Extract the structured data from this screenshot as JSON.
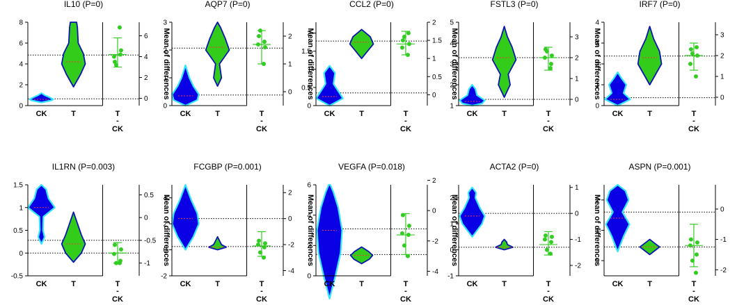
{
  "figure": {
    "x_categories": [
      "CK",
      "T",
      "T",
      "-",
      "CK"
    ],
    "right_axis_label": "Mean of differences",
    "colors": {
      "ck_fill": "#0a00e6",
      "ck_edge": "#33e6ff",
      "t_fill": "#33cc1a",
      "t_edge": "#0a14b4",
      "dot": "#33cc22",
      "errbar": "#33cc22",
      "median": "#ff3333"
    }
  },
  "chart_data": [
    {
      "type": "violin",
      "gene": "IL10",
      "title": "IL10 (P=0)",
      "left": {
        "ylim": [
          0,
          8
        ],
        "ticks": [
          0,
          2,
          4,
          6,
          8
        ]
      },
      "right": {
        "ylim": [
          -0.7,
          7.3
        ],
        "ticks": [
          0,
          2,
          4,
          6
        ]
      },
      "ck": {
        "min": 0.3,
        "max": 1.2,
        "median": 0.6,
        "shape": [
          [
            0.3,
            0
          ],
          [
            0.5,
            0.25
          ],
          [
            0.6,
            0.3
          ],
          [
            0.8,
            0.2
          ],
          [
            1.0,
            0.08
          ],
          [
            1.2,
            0
          ]
        ]
      },
      "t": {
        "min": 1.8,
        "max": 8,
        "median": 4.2,
        "shape": [
          [
            1.8,
            0
          ],
          [
            3.0,
            0.18
          ],
          [
            4.0,
            0.3
          ],
          [
            5.0,
            0.25
          ],
          [
            6.0,
            0.12
          ],
          [
            7.5,
            0.1
          ],
          [
            8,
            0.08
          ]
        ]
      },
      "ref_left": [
        0.65,
        4.85
      ],
      "diff": {
        "points": [
          3.5,
          4.6,
          4.0,
          4.2,
          3.2,
          6.8
        ],
        "mean": 4.2,
        "lo": 3.0,
        "hi": 5.8
      }
    },
    {
      "type": "violin",
      "gene": "AQP7",
      "title": "AQP7 (P=0)",
      "left": {
        "ylim": [
          0,
          3
        ],
        "ticks": [
          0,
          1,
          2,
          3
        ]
      },
      "right": {
        "ylim": [
          -0.5,
          2.5
        ],
        "ticks": [
          0,
          1,
          2
        ]
      },
      "ck": {
        "min": 0,
        "max": 1.45,
        "median": 0.35,
        "shape": [
          [
            0,
            0
          ],
          [
            0.2,
            0.3
          ],
          [
            0.4,
            0.34
          ],
          [
            0.7,
            0.2
          ],
          [
            1.0,
            0.1
          ],
          [
            1.45,
            0
          ]
        ]
      },
      "t": {
        "min": 0.7,
        "max": 3,
        "median": 2.1,
        "shape": [
          [
            0.7,
            0
          ],
          [
            1.0,
            0.1
          ],
          [
            1.5,
            0.05
          ],
          [
            2.0,
            0.3
          ],
          [
            2.4,
            0.2
          ],
          [
            2.8,
            0.08
          ],
          [
            3,
            0
          ]
        ]
      },
      "ref_left": [
        0.38,
        2.07
      ],
      "diff": {
        "points": [
          2.0,
          1.6,
          1.7,
          1.8,
          2.2,
          1.0
        ],
        "mean": 1.7,
        "lo": 1.0,
        "hi": 2.2
      }
    },
    {
      "type": "violin",
      "gene": "CCL2",
      "title": "CCL2 (P=0)",
      "left": {
        "ylim": [
          0,
          2.3
        ],
        "ticks": [
          0,
          0.5,
          1.0,
          1.5,
          2.0
        ]
      },
      "right": {
        "ylim": [
          -0.3,
          2.0
        ],
        "ticks": [
          0,
          0.5,
          1.0,
          1.5,
          2.0
        ]
      },
      "ck": {
        "min": 0,
        "max": 1.1,
        "median": 0.25,
        "shape": [
          [
            0,
            0
          ],
          [
            0.2,
            0.34
          ],
          [
            0.35,
            0.25
          ],
          [
            0.6,
            0.1
          ],
          [
            0.9,
            0.14
          ],
          [
            1.1,
            0
          ]
        ]
      },
      "t": {
        "min": 1.3,
        "max": 2.1,
        "median": 1.75,
        "shape": [
          [
            1.3,
            0
          ],
          [
            1.5,
            0.15
          ],
          [
            1.7,
            0.3
          ],
          [
            1.9,
            0.22
          ],
          [
            2.1,
            0
          ]
        ]
      },
      "ref_left": [
        0.35,
        1.78
      ],
      "diff": {
        "points": [
          1.5,
          1.4,
          1.3,
          1.7,
          1.6,
          1.1
        ],
        "mean": 1.4,
        "lo": 1.1,
        "hi": 1.75
      }
    },
    {
      "type": "violin",
      "gene": "FSTL3",
      "title": "FSTL3 (P=0)",
      "left": {
        "ylim": [
          1,
          5
        ],
        "ticks": [
          1,
          2,
          3,
          4,
          5
        ]
      },
      "right": {
        "ylim": [
          -0.3,
          3.7
        ],
        "ticks": [
          0,
          1,
          2,
          3
        ]
      },
      "ck": {
        "min": 1,
        "max": 2,
        "median": 1.2,
        "shape": [
          [
            1,
            0
          ],
          [
            1.1,
            0.25
          ],
          [
            1.25,
            0.32
          ],
          [
            1.5,
            0.12
          ],
          [
            1.8,
            0.08
          ],
          [
            2,
            0
          ]
        ]
      },
      "t": {
        "min": 1.4,
        "max": 4.8,
        "median": 3.3,
        "shape": [
          [
            1.4,
            0
          ],
          [
            2.0,
            0.15
          ],
          [
            2.5,
            0.1
          ],
          [
            3.2,
            0.3
          ],
          [
            3.8,
            0.2
          ],
          [
            4.3,
            0.08
          ],
          [
            4.8,
            0
          ]
        ]
      },
      "ref_left": [
        1.3,
        3.3
      ],
      "diff": {
        "points": [
          2.4,
          2.1,
          2.0,
          1.7,
          2.3,
          1.5
        ],
        "mean": 2.0,
        "lo": 1.4,
        "hi": 2.5
      }
    },
    {
      "type": "violin",
      "gene": "IRF7",
      "title": "IRF7 (P=0)",
      "left": {
        "ylim": [
          0,
          4
        ],
        "ticks": [
          0,
          1,
          2,
          3,
          4
        ]
      },
      "right": {
        "ylim": [
          -0.4,
          3.6
        ],
        "ticks": [
          0,
          1,
          2,
          3
        ]
      },
      "ck": {
        "min": 0,
        "max": 1.6,
        "median": 0.3,
        "shape": [
          [
            0,
            0
          ],
          [
            0.3,
            0.32
          ],
          [
            0.6,
            0.15
          ],
          [
            1.0,
            0.22
          ],
          [
            1.3,
            0.1
          ],
          [
            1.6,
            0
          ]
        ]
      },
      "t": {
        "min": 1.0,
        "max": 3.8,
        "median": 2.3,
        "shape": [
          [
            1.0,
            0
          ],
          [
            1.5,
            0.15
          ],
          [
            2.0,
            0.3
          ],
          [
            2.6,
            0.25
          ],
          [
            3.2,
            0.1
          ],
          [
            3.8,
            0
          ]
        ]
      },
      "ref_left": [
        0.38,
        2.38
      ],
      "diff": {
        "points": [
          2.3,
          2.0,
          1.6,
          2.4,
          2.1,
          1.0
        ],
        "mean": 2.0,
        "lo": 1.3,
        "hi": 2.6
      }
    },
    {
      "type": "violin",
      "gene": "IL1RN",
      "title": "IL1RN (P=0.003)",
      "left": {
        "ylim": [
          -0.5,
          1.5
        ],
        "ticks": [
          -0.5,
          0.0,
          0.5,
          1.0,
          1.5
        ]
      },
      "right": {
        "ylim": [
          -1.28,
          0.72
        ],
        "ticks": [
          -1.0,
          -0.5,
          0.0,
          0.5
        ]
      },
      "ck": {
        "min": 0.2,
        "max": 1.5,
        "median": 1.0,
        "shape": [
          [
            0.2,
            0
          ],
          [
            0.35,
            0.08
          ],
          [
            0.5,
            0.04
          ],
          [
            0.8,
            0.05
          ],
          [
            1.0,
            0.34
          ],
          [
            1.2,
            0.18
          ],
          [
            1.4,
            0.12
          ],
          [
            1.5,
            0
          ]
        ]
      },
      "t": {
        "min": -0.2,
        "max": 0.9,
        "median": 0.2,
        "shape": [
          [
            -0.2,
            0
          ],
          [
            0.0,
            0.2
          ],
          [
            0.2,
            0.3
          ],
          [
            0.4,
            0.2
          ],
          [
            0.6,
            0.12
          ],
          [
            0.9,
            0
          ]
        ]
      },
      "ref_left": [
        0.0,
        0.28
      ],
      "diff": {
        "points": [
          -0.6,
          -0.7,
          -0.8,
          -0.95,
          -1.0,
          -1.0
        ],
        "mean": -0.78,
        "lo": -1.0,
        "hi": -0.55
      }
    },
    {
      "type": "violin",
      "gene": "FCGBP",
      "title": "FCGBP (P=0.001)",
      "left": {
        "ylim": [
          -2,
          5
        ],
        "ticks": [
          -2,
          0,
          2,
          4
        ]
      },
      "right": {
        "ylim": [
          -4.4,
          2.6
        ],
        "ticks": [
          -4,
          -2,
          0,
          2
        ]
      },
      "ck": {
        "min": 0,
        "max": 5,
        "median": 2.4,
        "shape": [
          [
            0,
            0
          ],
          [
            1.0,
            0.2
          ],
          [
            2.0,
            0.34
          ],
          [
            2.8,
            0.3
          ],
          [
            3.8,
            0.15
          ],
          [
            5,
            0
          ]
        ]
      },
      "t": {
        "min": 0,
        "max": 1.0,
        "median": 0.2,
        "shape": [
          [
            0,
            0
          ],
          [
            0.2,
            0.22
          ],
          [
            0.4,
            0.1
          ],
          [
            0.7,
            0.05
          ],
          [
            1.0,
            0
          ]
        ]
      },
      "ref_left": [
        0.25,
        2.4
      ],
      "diff": {
        "points": [
          -1.7,
          -1.9,
          -2.0,
          -2.2,
          -2.6,
          -3.0
        ],
        "mean": -2.1,
        "lo": -2.9,
        "hi": -1.0
      }
    },
    {
      "type": "violin",
      "gene": "VEGFA",
      "title": "VEGFA (P=0.018)",
      "left": {
        "ylim": [
          0,
          6
        ],
        "ticks": [
          0,
          2,
          4,
          6
        ]
      },
      "right": {
        "ylim": [
          -4.3,
          1.7
        ],
        "ticks": [
          -4,
          -2,
          0,
          2
        ]
      },
      "ck": {
        "min": -1.5,
        "max": 6,
        "median": 3.0,
        "shape": [
          [
            -1.5,
            0
          ],
          [
            0,
            0.15
          ],
          [
            1.5,
            0.28
          ],
          [
            3.0,
            0.32
          ],
          [
            4.5,
            0.22
          ],
          [
            5.5,
            0.1
          ],
          [
            6,
            0.02
          ]
        ]
      },
      "t": {
        "min": 0.8,
        "max": 1.9,
        "median": 1.35,
        "shape": [
          [
            0.8,
            0
          ],
          [
            1.1,
            0.2
          ],
          [
            1.35,
            0.28
          ],
          [
            1.6,
            0.18
          ],
          [
            1.9,
            0
          ]
        ]
      },
      "ref_left": [
        1.4,
        3.1
      ],
      "diff": {
        "points": [
          -0.3,
          -1.0,
          -1.5,
          -1.6,
          -2.3,
          -3.0
        ],
        "mean": -1.6,
        "lo": -2.9,
        "hi": -0.2
      }
    },
    {
      "type": "violin",
      "gene": "ACTA2",
      "title": "ACTA2 (P=0)",
      "left": {
        "ylim": [
          -1,
          2.5
        ],
        "ticks": [
          -1,
          0,
          1,
          2
        ]
      },
      "right": {
        "ylim": [
          -2.4,
          1.1
        ],
        "ticks": [
          -2,
          -1,
          0,
          1
        ]
      },
      "ck": {
        "min": 0.5,
        "max": 2.4,
        "median": 1.3,
        "shape": [
          [
            0.5,
            0
          ],
          [
            1.0,
            0.25
          ],
          [
            1.3,
            0.32
          ],
          [
            1.6,
            0.2
          ],
          [
            2.0,
            0.08
          ],
          [
            2.2,
            0.1
          ],
          [
            2.4,
            0
          ]
        ]
      },
      "t": {
        "min": 0,
        "max": 0.4,
        "median": 0.1,
        "shape": [
          [
            0,
            0
          ],
          [
            0.1,
            0.22
          ],
          [
            0.2,
            0.08
          ],
          [
            0.3,
            0.06
          ],
          [
            0.4,
            0
          ]
        ]
      },
      "ref_left": [
        0.1,
        1.4
      ],
      "diff": {
        "points": [
          -0.85,
          -0.9,
          -1.0,
          -1.1,
          -1.4,
          -1.55
        ],
        "mean": -1.2,
        "lo": -1.6,
        "hi": -0.7
      }
    },
    {
      "type": "violin",
      "gene": "ASPN",
      "title": "ASPN (P=0.001)",
      "left": {
        "ylim": [
          -0.5,
          2.5
        ],
        "ticks": [
          0,
          1,
          2
        ]
      },
      "right": {
        "ylim": [
          -2.2,
          0.8
        ],
        "ticks": [
          -2,
          -1,
          0
        ]
      },
      "ck": {
        "min": 0.3,
        "max": 2.5,
        "median": 1.4,
        "shape": [
          [
            0.3,
            0
          ],
          [
            0.8,
            0.15
          ],
          [
            1.2,
            0.3
          ],
          [
            1.6,
            0.12
          ],
          [
            2.0,
            0.28
          ],
          [
            2.3,
            0.2
          ],
          [
            2.5,
            0
          ]
        ]
      },
      "t": {
        "min": 0.2,
        "max": 0.7,
        "median": 0.45,
        "shape": [
          [
            0.2,
            0
          ],
          [
            0.35,
            0.15
          ],
          [
            0.45,
            0.25
          ],
          [
            0.55,
            0.15
          ],
          [
            0.7,
            0
          ]
        ]
      },
      "ref_left": [
        0.45,
        1.6
      ],
      "diff": {
        "points": [
          -1.0,
          -1.1,
          -1.2,
          -1.5,
          -1.7,
          -2.1
        ],
        "mean": -1.2,
        "lo": -1.9,
        "hi": -0.5
      }
    }
  ]
}
